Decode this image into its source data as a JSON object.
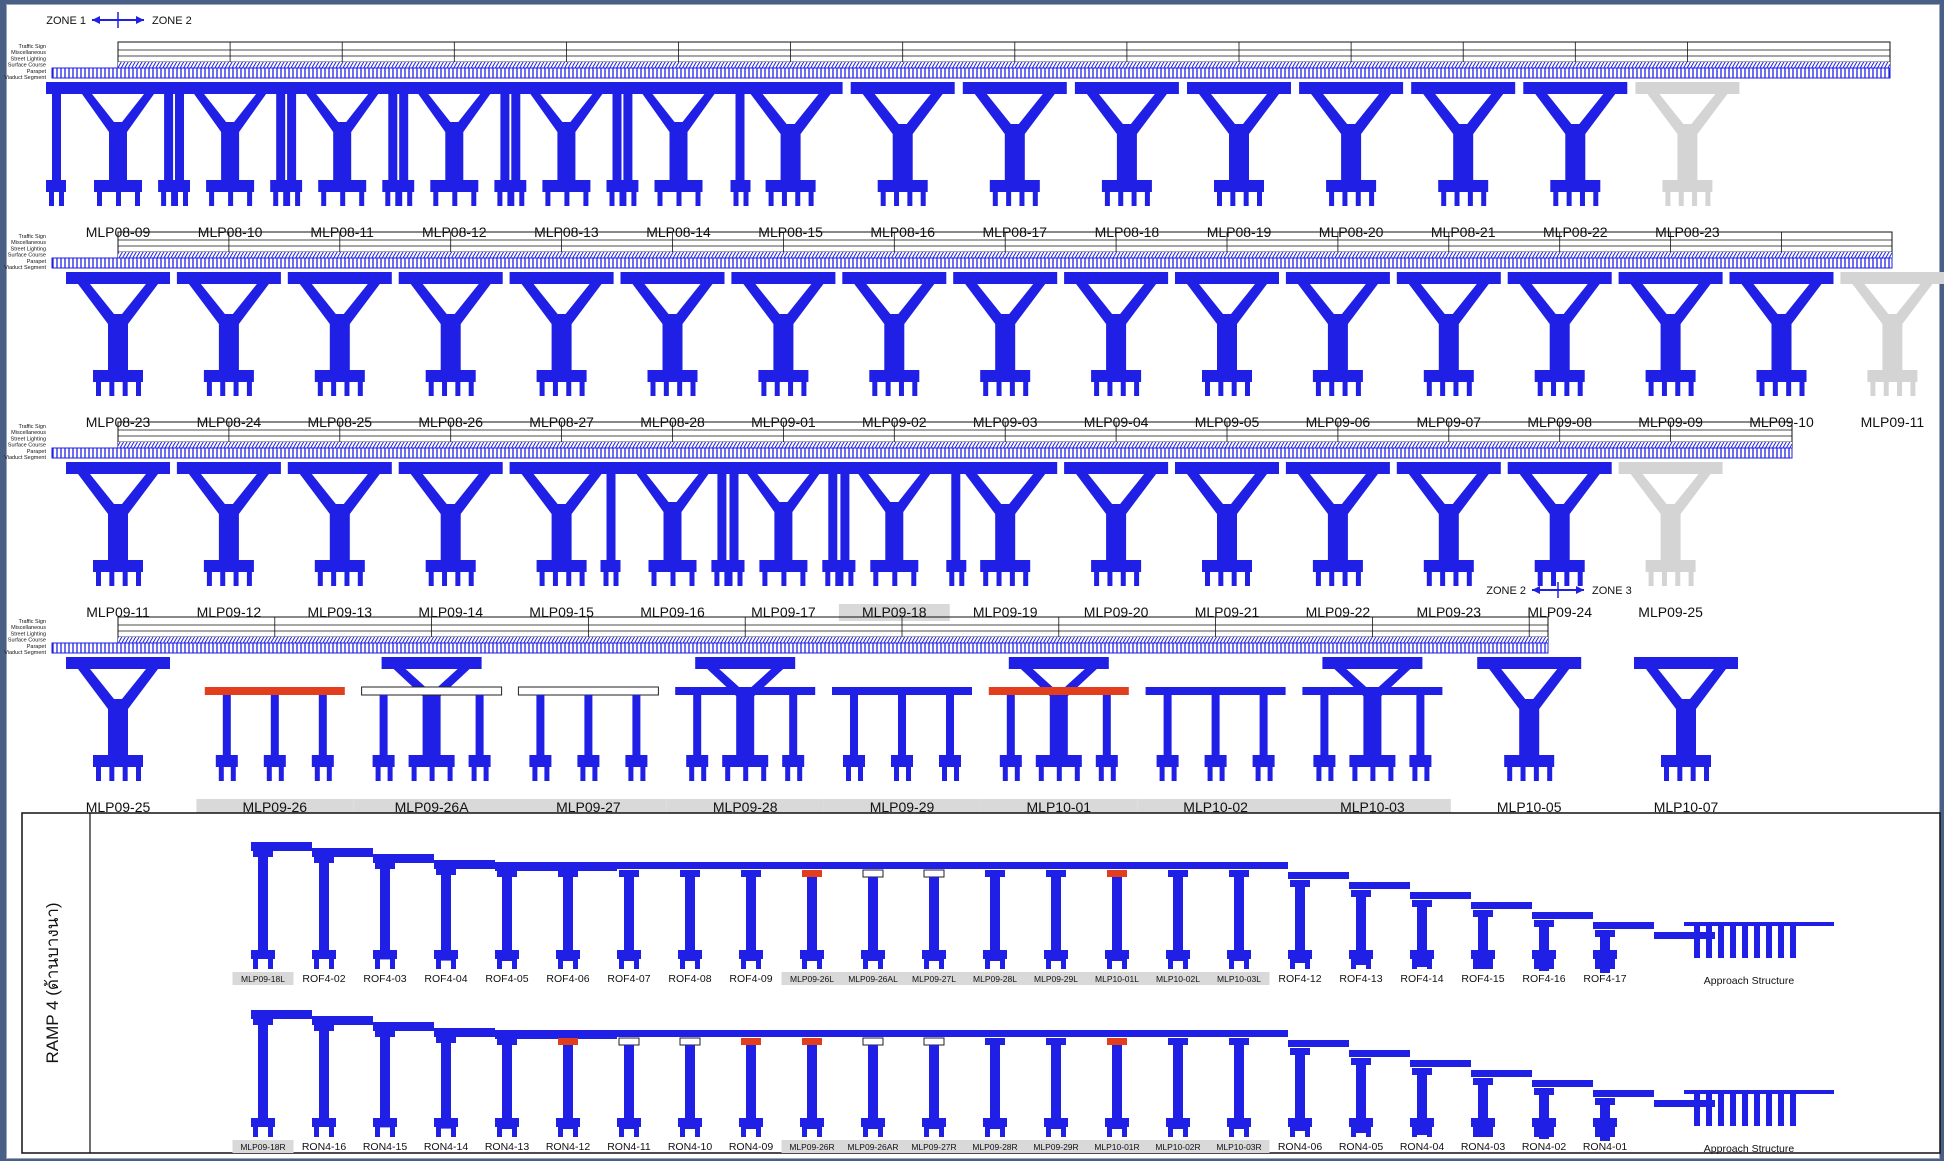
{
  "colors": {
    "structure": "#1f1fe6",
    "existing": "#d4d4d4",
    "highlight": "#e23d1d",
    "label_bg": "#d9d9d9"
  },
  "layer_labels": [
    "Traffic Sign",
    "Miscellaneous",
    "Street Lighting",
    "Surface Course",
    "Parapet",
    "Viaduct Segment"
  ],
  "zone_markers": [
    {
      "left": "ZONE 1",
      "right": "ZONE 2"
    },
    {
      "left": "ZONE 2",
      "right": "ZONE 3"
    }
  ],
  "rows": [
    {
      "piers": [
        {
          "label": "MLP08-09",
          "type": "multi"
        },
        {
          "label": "MLP08-10",
          "type": "multi"
        },
        {
          "label": "MLP08-11",
          "type": "multi"
        },
        {
          "label": "MLP08-12",
          "type": "multi"
        },
        {
          "label": "MLP08-13",
          "type": "multi"
        },
        {
          "label": "MLP08-14",
          "type": "multi"
        },
        {
          "label": "MLP08-15",
          "type": "y"
        },
        {
          "label": "MLP08-16",
          "type": "y"
        },
        {
          "label": "MLP08-17",
          "type": "y"
        },
        {
          "label": "MLP08-18",
          "type": "y"
        },
        {
          "label": "MLP08-19",
          "type": "y"
        },
        {
          "label": "MLP08-20",
          "type": "y"
        },
        {
          "label": "MLP08-21",
          "type": "y"
        },
        {
          "label": "MLP08-22",
          "type": "y"
        },
        {
          "label": "MLP08-23",
          "type": "y",
          "existing": true
        }
      ]
    },
    {
      "piers": [
        {
          "label": "MLP08-23",
          "type": "y"
        },
        {
          "label": "MLP08-24",
          "type": "y"
        },
        {
          "label": "MLP08-25",
          "type": "y"
        },
        {
          "label": "MLP08-26",
          "type": "y"
        },
        {
          "label": "MLP08-27",
          "type": "y"
        },
        {
          "label": "MLP08-28",
          "type": "y"
        },
        {
          "label": "MLP09-01",
          "type": "y"
        },
        {
          "label": "MLP09-02",
          "type": "y"
        },
        {
          "label": "MLP09-03",
          "type": "y"
        },
        {
          "label": "MLP09-04",
          "type": "y"
        },
        {
          "label": "MLP09-05",
          "type": "y"
        },
        {
          "label": "MLP09-06",
          "type": "y"
        },
        {
          "label": "MLP09-07",
          "type": "y"
        },
        {
          "label": "MLP09-08",
          "type": "y"
        },
        {
          "label": "MLP09-09",
          "type": "y"
        },
        {
          "label": "MLP09-10",
          "type": "y"
        },
        {
          "label": "MLP09-11",
          "type": "y",
          "existing": true
        }
      ]
    },
    {
      "piers": [
        {
          "label": "MLP09-11",
          "type": "y"
        },
        {
          "label": "MLP09-12",
          "type": "y"
        },
        {
          "label": "MLP09-13",
          "type": "y"
        },
        {
          "label": "MLP09-14",
          "type": "y"
        },
        {
          "label": "MLP09-15",
          "type": "y"
        },
        {
          "label": "MLP09-16",
          "type": "multi"
        },
        {
          "label": "MLP09-17",
          "type": "multi"
        },
        {
          "label": "MLP09-18",
          "type": "multi",
          "shaded": true
        },
        {
          "label": "MLP09-19",
          "type": "y"
        },
        {
          "label": "MLP09-20",
          "type": "y"
        },
        {
          "label": "MLP09-21",
          "type": "y"
        },
        {
          "label": "MLP09-22",
          "type": "y"
        },
        {
          "label": "MLP09-23",
          "type": "y"
        },
        {
          "label": "MLP09-24",
          "type": "y"
        },
        {
          "label": "MLP09-25",
          "type": "y",
          "existing": true
        }
      ]
    },
    {
      "piers": [
        {
          "label": "MLP09-25",
          "type": "y"
        },
        {
          "label": "MLP09-26",
          "type": "portal",
          "cap": "red",
          "shaded": true
        },
        {
          "label": "MLP09-26A",
          "type": "portal-y",
          "cap": "white",
          "shaded": true
        },
        {
          "label": "MLP09-27",
          "type": "portal",
          "cap": "white",
          "shaded": true
        },
        {
          "label": "MLP09-28",
          "type": "portal-y",
          "cap": "blue",
          "shaded": true
        },
        {
          "label": "MLP09-29",
          "type": "portal",
          "cap": "blue",
          "shaded": true
        },
        {
          "label": "MLP10-01",
          "type": "portal-y",
          "cap": "red",
          "shaded": true
        },
        {
          "label": "MLP10-02",
          "type": "portal",
          "cap": "blue",
          "shaded": true
        },
        {
          "label": "MLP10-03",
          "type": "portal-y",
          "cap": "blue",
          "shaded": true
        },
        {
          "label": "MLP10-05",
          "type": "y"
        },
        {
          "label": "MLP10-07",
          "type": "y"
        }
      ]
    }
  ],
  "ramp": {
    "title": "RAMP 4 (ด้านบางนา)",
    "upper": [
      {
        "label": "MLP09-18L",
        "shaded": true,
        "cap": "blue"
      },
      {
        "label": "ROF4-02",
        "cap": "blue"
      },
      {
        "label": "ROF4-03",
        "cap": "blue"
      },
      {
        "label": "ROF4-04",
        "cap": "blue"
      },
      {
        "label": "ROF4-05",
        "cap": "blue"
      },
      {
        "label": "ROF4-06",
        "cap": "blue"
      },
      {
        "label": "ROF4-07",
        "cap": "blue"
      },
      {
        "label": "ROF4-08",
        "cap": "blue"
      },
      {
        "label": "ROF4-09",
        "cap": "blue"
      },
      {
        "label": "MLP09-26L",
        "shaded": true,
        "cap": "red"
      },
      {
        "label": "MLP09-26AL",
        "shaded": true,
        "cap": "white"
      },
      {
        "label": "MLP09-27L",
        "shaded": true,
        "cap": "white"
      },
      {
        "label": "MLP09-28L",
        "shaded": true,
        "cap": "blue"
      },
      {
        "label": "MLP09-29L",
        "shaded": true,
        "cap": "blue"
      },
      {
        "label": "MLP10-01L",
        "shaded": true,
        "cap": "red"
      },
      {
        "label": "MLP10-02L",
        "shaded": true,
        "cap": "blue"
      },
      {
        "label": "MLP10-03L",
        "shaded": true,
        "cap": "blue"
      },
      {
        "label": "ROF4-12",
        "cap": "blue"
      },
      {
        "label": "ROF4-13",
        "cap": "blue"
      },
      {
        "label": "ROF4-14",
        "cap": "blue"
      },
      {
        "label": "ROF4-15",
        "cap": "blue"
      },
      {
        "label": "ROF4-16",
        "cap": "blue"
      },
      {
        "label": "ROF4-17",
        "cap": "blue"
      }
    ],
    "lower": [
      {
        "label": "MLP09-18R",
        "shaded": true,
        "cap": "blue"
      },
      {
        "label": "RON4-16",
        "cap": "blue"
      },
      {
        "label": "RON4-15",
        "cap": "blue"
      },
      {
        "label": "RON4-14",
        "cap": "blue"
      },
      {
        "label": "RON4-13",
        "cap": "blue"
      },
      {
        "label": "RON4-12",
        "cap": "red"
      },
      {
        "label": "RON4-11",
        "cap": "white"
      },
      {
        "label": "RON4-10",
        "cap": "white"
      },
      {
        "label": "RON4-09",
        "cap": "red"
      },
      {
        "label": "MLP09-26R",
        "shaded": true,
        "cap": "red"
      },
      {
        "label": "MLP09-26AR",
        "shaded": true,
        "cap": "white"
      },
      {
        "label": "MLP09-27R",
        "shaded": true,
        "cap": "white"
      },
      {
        "label": "MLP09-28R",
        "shaded": true,
        "cap": "blue"
      },
      {
        "label": "MLP09-29R",
        "shaded": true,
        "cap": "blue"
      },
      {
        "label": "MLP10-01R",
        "shaded": true,
        "cap": "red"
      },
      {
        "label": "MLP10-02R",
        "shaded": true,
        "cap": "blue"
      },
      {
        "label": "MLP10-03R",
        "shaded": true,
        "cap": "blue"
      },
      {
        "label": "RON4-06",
        "cap": "blue"
      },
      {
        "label": "RON4-05",
        "cap": "blue"
      },
      {
        "label": "RON4-04",
        "cap": "blue"
      },
      {
        "label": "RON4-03",
        "cap": "blue"
      },
      {
        "label": "RON4-02",
        "cap": "blue"
      },
      {
        "label": "RON4-01",
        "cap": "blue"
      }
    ],
    "approach_label": "Approach Structure"
  }
}
